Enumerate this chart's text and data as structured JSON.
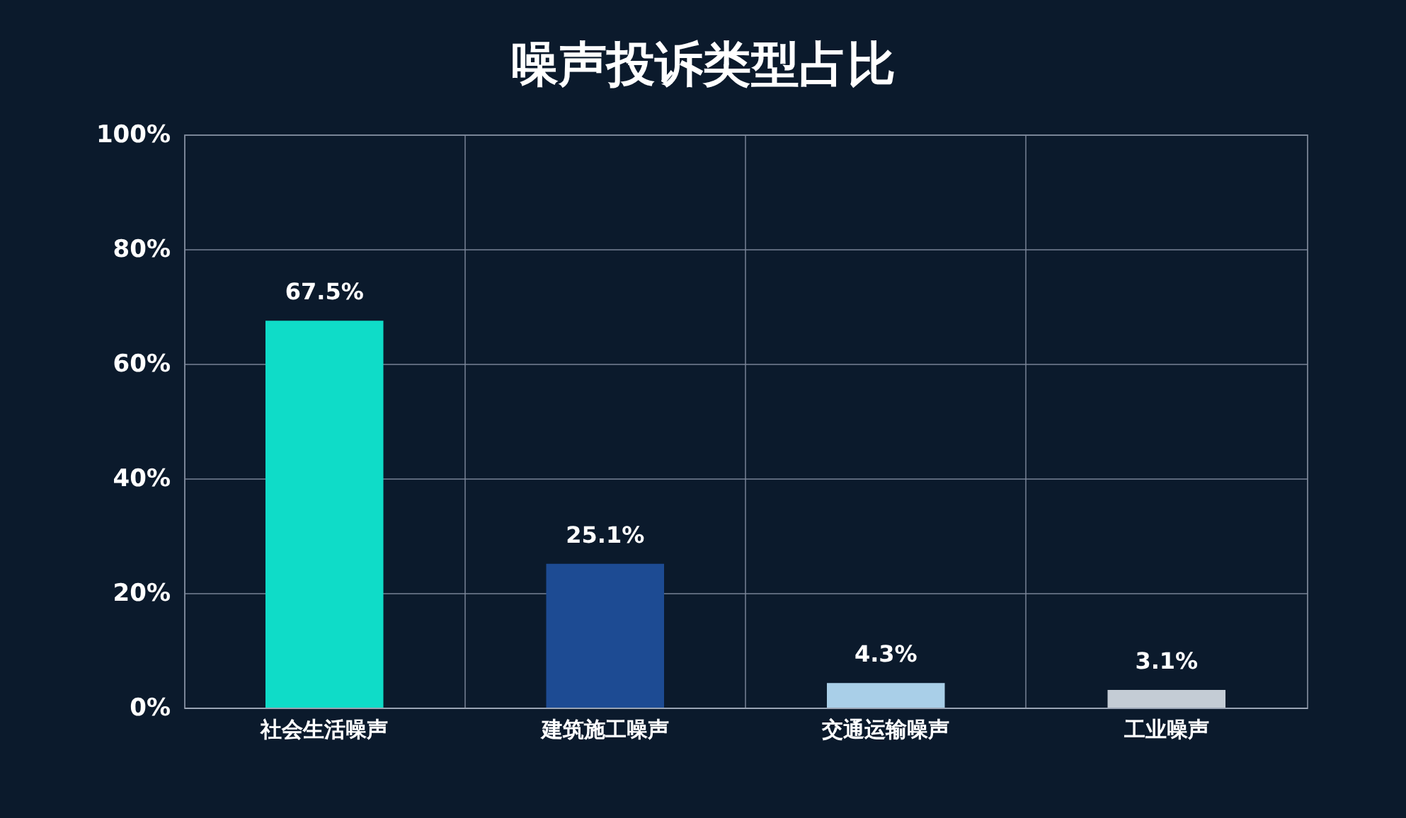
{
  "chart_data": {
    "type": "bar",
    "title": "噪声投诉类型占比",
    "categories": [
      "社会生活噪声",
      "建筑施工噪声",
      "交通运输噪声",
      "工业噪声"
    ],
    "values": [
      67.5,
      25.1,
      4.3,
      3.1
    ],
    "value_labels": [
      "67.5%",
      "25.1%",
      "4.3%",
      "3.1%"
    ],
    "colors": [
      "#0fdcc8",
      "#1d4b93",
      "#a9cfe8",
      "#c4ccd5"
    ],
    "ylim": [
      0,
      100
    ],
    "yticks": [
      {
        "value": 0,
        "label": "0%"
      },
      {
        "value": 20,
        "label": "20%"
      },
      {
        "value": 40,
        "label": "40%"
      },
      {
        "value": 60,
        "label": "60%"
      },
      {
        "value": 80,
        "label": "80%"
      },
      {
        "value": 100,
        "label": "100%"
      }
    ],
    "grid": true
  }
}
